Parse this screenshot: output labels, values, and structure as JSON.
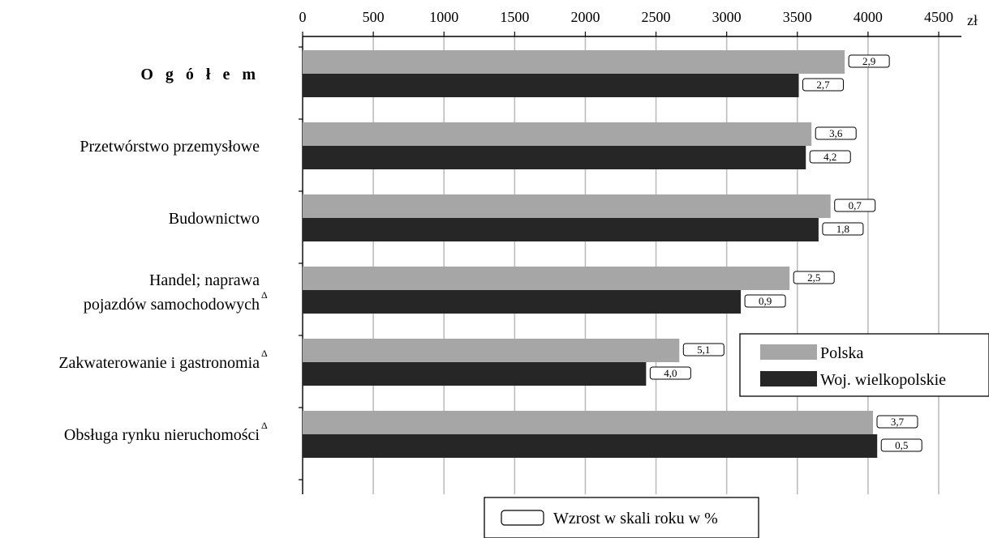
{
  "chart_data": {
    "type": "bar",
    "orientation": "horizontal",
    "unit": "zł",
    "xlim": [
      0,
      4500
    ],
    "ticks": [
      0,
      500,
      1000,
      1500,
      2000,
      2500,
      3000,
      3500,
      4000,
      4500
    ],
    "grid": true,
    "categories": [
      "O g ó ł e m",
      "Przetwórstwo przemysłowe",
      "Budownictwo",
      "Handel; naprawa pojazdów samochodowych",
      "Zakwaterowanie i gastronomia",
      "Obsługa rynku nieruchomości"
    ],
    "category_lines": [
      [
        "O g ó ł e m"
      ],
      [
        "Przetwórstwo przemysłowe"
      ],
      [
        "Budownictwo"
      ],
      [
        "Handel; naprawa",
        "pojazdów samochodowych"
      ],
      [
        "Zakwaterowanie i gastronomia"
      ],
      [
        "Obsługa rynku nieruchomości"
      ]
    ],
    "category_marks": [
      "",
      "",
      "",
      "Δ",
      "Δ",
      "Δ"
    ],
    "series": [
      {
        "name": "Polska",
        "color": "#a6a6a6",
        "values": [
          3835,
          3600,
          3735,
          3445,
          2665,
          4035
        ],
        "growth_labels": [
          "2,9",
          "3,6",
          "0,7",
          "2,5",
          "5,1",
          "3,7"
        ]
      },
      {
        "name": "Woj. wielkopolskie",
        "color": "#262626",
        "values": [
          3510,
          3560,
          3650,
          3100,
          2430,
          4065
        ],
        "growth_labels": [
          "2,7",
          "4,2",
          "1,8",
          "0,9",
          "4,0",
          "0,5"
        ]
      }
    ],
    "legend": {
      "position": "lower-right",
      "items": [
        "Polska",
        "Woj. wielkopolskie"
      ]
    },
    "note_legend": "Wzrost w skali roku w %"
  }
}
